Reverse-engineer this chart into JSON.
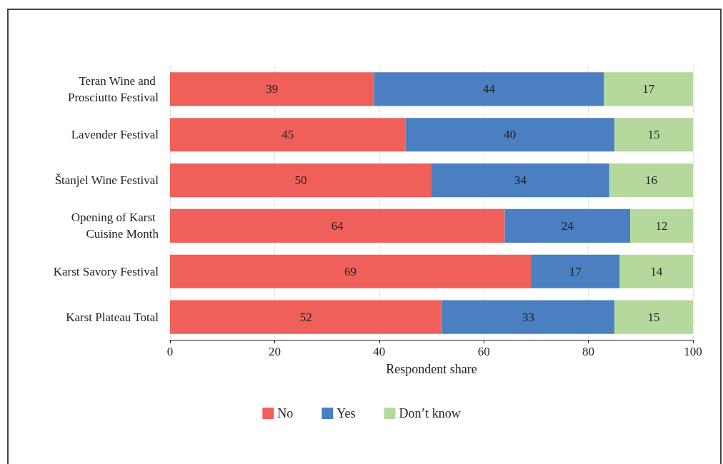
{
  "chart_data": {
    "type": "bar",
    "orientation": "horizontal",
    "stacked": true,
    "xlabel": "Respondent share",
    "categories": [
      "Teran Wine and Prosciutto Festival",
      "Lavender Festival",
      "Štanjel Wine Festival",
      "Opening of Karst Cuisine Month",
      "Karst Savory Festival",
      "Karst Plateau Total"
    ],
    "series": [
      {
        "name": "No",
        "color": "#f0605a",
        "values": [
          39,
          45,
          50,
          64,
          69,
          52
        ]
      },
      {
        "name": "Yes",
        "color": "#4a7fc1",
        "values": [
          44,
          40,
          34,
          24,
          17,
          33
        ]
      },
      {
        "name": "Don’t know",
        "color": "#b5d99c",
        "values": [
          17,
          15,
          16,
          12,
          14,
          15
        ]
      }
    ],
    "xlim": [
      0,
      100
    ],
    "xticks": [
      0,
      20,
      40,
      60,
      80,
      100
    ],
    "grid": "x",
    "legend": "bottom",
    "data_labels": true
  }
}
